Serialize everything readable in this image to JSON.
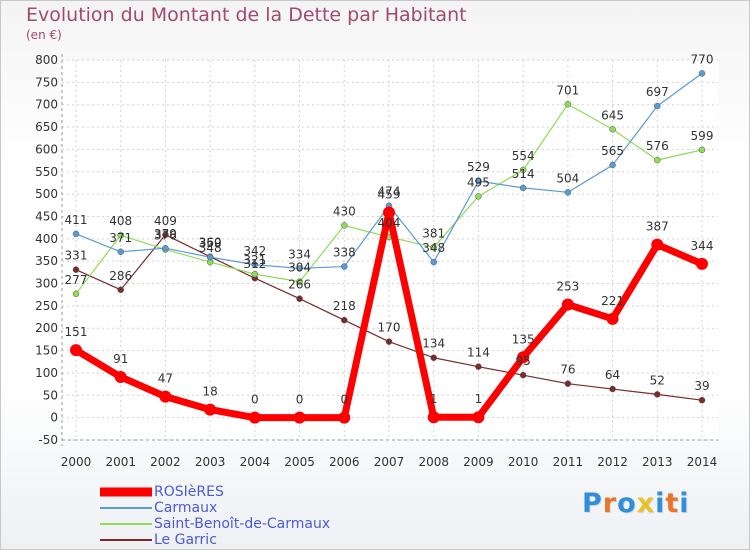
{
  "title": "Evolution du Montant de la Dette par Habitant",
  "subtitle": "(en €)",
  "logo": {
    "text": "Proxiti",
    "colors": [
      "#2f8fd8",
      "#e8762a",
      "#2f8fd8",
      "#e8c22a",
      "#2f8fd8",
      "#e8762a",
      "#2f8fd8"
    ]
  },
  "chart_data": {
    "type": "line",
    "x": [
      "2000",
      "2001",
      "2002",
      "2003",
      "2004",
      "2005",
      "2006",
      "2007",
      "2008",
      "2009",
      "2010",
      "2011",
      "2012",
      "2013",
      "2014"
    ],
    "ylim": [
      -50,
      800
    ],
    "yticks": [
      -50,
      0,
      50,
      100,
      150,
      200,
      250,
      300,
      350,
      400,
      450,
      500,
      550,
      600,
      650,
      700,
      750,
      800
    ],
    "grid": true,
    "legend_position": "bottom-left",
    "series": [
      {
        "name": "ROSIèRES",
        "color": "#ff0000",
        "width": 7,
        "marker": 6,
        "values": [
          151,
          91,
          47,
          18,
          0,
          0,
          0,
          459,
          1,
          1,
          135,
          253,
          221,
          387,
          344
        ],
        "labels": [
          "151",
          "91",
          "47",
          "18",
          "0",
          "0",
          "0",
          "459",
          "1",
          "1",
          "135",
          "253",
          "221",
          "387",
          "344"
        ]
      },
      {
        "name": "Carmaux",
        "color": "#5b9bd5",
        "width": 1.2,
        "marker": 3,
        "values": [
          411,
          371,
          379,
          359,
          342,
          334,
          338,
          474,
          348,
          529,
          514,
          504,
          565,
          697,
          770
        ],
        "labels": [
          "411",
          "371",
          "379",
          "359",
          "342",
          "334",
          "338",
          "474",
          "348",
          "529",
          "514",
          "504",
          "565",
          "697",
          "770"
        ]
      },
      {
        "name": "Saint-Benoît-de-Carmaux",
        "color": "#8fdb5a",
        "width": 1.2,
        "marker": 3,
        "values": [
          277,
          408,
          376,
          348,
          321,
          304,
          430,
          404,
          381,
          495,
          554,
          701,
          645,
          576,
          599
        ],
        "labels": [
          "277",
          "408",
          "376",
          "348",
          "321",
          "304",
          "430",
          "404",
          "381",
          "495",
          "554",
          "701",
          "645",
          "576",
          "599"
        ]
      },
      {
        "name": "Le Garric",
        "color": "#7a2b2b",
        "width": 1.2,
        "marker": 3,
        "values": [
          331,
          286,
          409,
          360,
          312,
          266,
          218,
          170,
          134,
          114,
          95,
          76,
          64,
          52,
          39
        ],
        "labels": [
          "331",
          "286",
          "409",
          "360",
          "312",
          "266",
          "218",
          "170",
          "134",
          "114",
          "95",
          "76",
          "64",
          "52",
          "39"
        ]
      }
    ]
  }
}
